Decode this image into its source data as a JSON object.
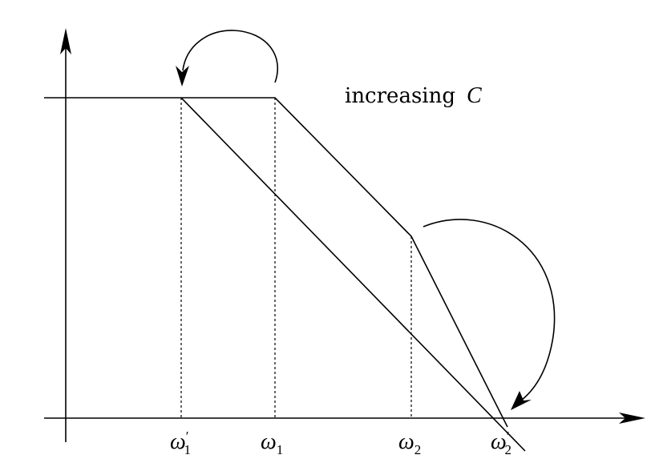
{
  "annotation": {
    "text": "increasing",
    "variable": "C"
  },
  "ticks": [
    {
      "id": "omega1-prime",
      "base": "ω",
      "prime": "′",
      "sub": "1"
    },
    {
      "id": "omega1",
      "base": "ω",
      "prime": "",
      "sub": "1"
    },
    {
      "id": "omega2",
      "base": "ω",
      "prime": "",
      "sub": "2"
    },
    {
      "id": "omega2-prime",
      "base": "ω",
      "prime": "′",
      "sub": "2"
    }
  ]
}
